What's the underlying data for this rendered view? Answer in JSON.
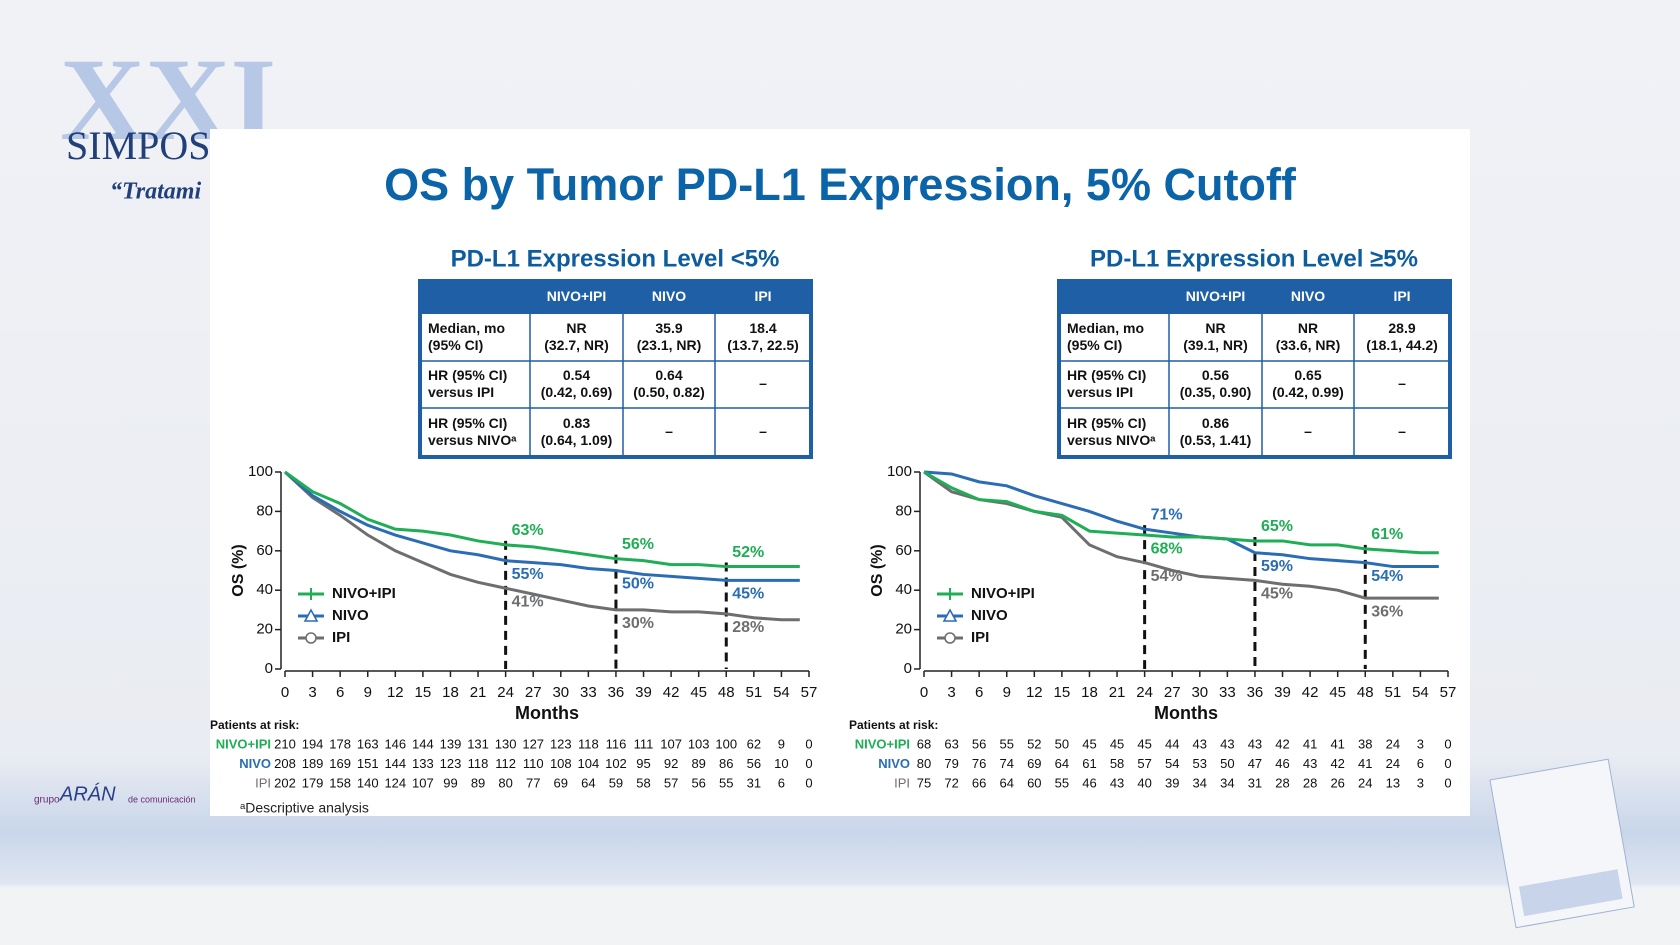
{
  "background": {
    "logo": [
      "XXI",
      "SIMPOSIO",
      "“Tratami"
    ],
    "publisher": [
      "grupo",
      "ARÁN",
      "de comunicación"
    ]
  },
  "title": "OS by Tumor PD-L1 Expression, 5% Cutoff",
  "chart_data": [
    {
      "type": "line",
      "title": "PD-L1 Expression Level <5%",
      "table": {
        "columns": [
          "NIVO+IPI",
          "NIVO",
          "IPI"
        ],
        "rows": [
          {
            "label": [
              "Median, mo",
              "(95% CI)"
            ],
            "cells": [
              [
                "NR",
                "(32.7, NR)"
              ],
              [
                "35.9",
                "(23.1, NR)"
              ],
              [
                "18.4",
                "(13.7, 22.5)"
              ]
            ]
          },
          {
            "label": [
              "HR (95% CI)",
              "versus IPI"
            ],
            "cells": [
              [
                "0.54",
                "(0.42, 0.69)"
              ],
              [
                "0.64",
                "(0.50, 0.82)"
              ],
              [
                "–"
              ]
            ]
          },
          {
            "label": [
              "HR (95% CI)",
              "versus NIVOᵃ"
            ],
            "cells": [
              [
                "0.83",
                "(0.64, 1.09)"
              ],
              [
                "–"
              ],
              [
                "–"
              ]
            ]
          }
        ]
      },
      "x": [
        0,
        3,
        6,
        9,
        12,
        15,
        18,
        21,
        24,
        27,
        30,
        33,
        36,
        39,
        42,
        45,
        48,
        51,
        54,
        56
      ],
      "xlim": [
        0,
        57
      ],
      "xticks": [
        0,
        3,
        6,
        9,
        12,
        15,
        18,
        21,
        24,
        27,
        30,
        33,
        36,
        39,
        42,
        45,
        48,
        51,
        54,
        57
      ],
      "ylim": [
        0,
        100
      ],
      "yticks": [
        0,
        20,
        40,
        60,
        80,
        100
      ],
      "xlabel": "Months",
      "ylabel": "OS (%)",
      "milestones": [
        24,
        36,
        48
      ],
      "series": [
        {
          "name": "NIVO+IPI",
          "color": "#1fae55",
          "marker": "plus",
          "values": [
            100,
            90,
            84,
            76,
            71,
            70,
            68,
            65,
            63,
            62,
            60,
            58,
            56,
            55,
            53,
            53,
            52,
            52,
            52,
            52
          ],
          "milestone_labels": [
            "63%",
            "56%",
            "52%"
          ]
        },
        {
          "name": "NIVO",
          "color": "#2a6db5",
          "marker": "triangle",
          "values": [
            100,
            88,
            80,
            73,
            68,
            64,
            60,
            58,
            55,
            54,
            53,
            51,
            50,
            48,
            47,
            46,
            45,
            45,
            45,
            45
          ],
          "milestone_labels": [
            "55%",
            "50%",
            "45%"
          ]
        },
        {
          "name": "IPI",
          "color": "#6d6e70",
          "marker": "circle",
          "values": [
            100,
            87,
            78,
            68,
            60,
            54,
            48,
            44,
            41,
            38,
            35,
            32,
            30,
            30,
            29,
            29,
            28,
            26,
            25,
            25
          ],
          "milestone_labels": [
            "41%",
            "30%",
            "28%"
          ]
        }
      ],
      "at_risk": {
        "title": "Patients at risk:",
        "rows": [
          [
            210,
            194,
            178,
            163,
            146,
            144,
            139,
            131,
            130,
            127,
            123,
            118,
            116,
            111,
            107,
            103,
            100,
            62,
            9,
            0
          ],
          [
            208,
            189,
            169,
            151,
            144,
            133,
            123,
            118,
            112,
            110,
            108,
            104,
            102,
            95,
            92,
            89,
            86,
            56,
            10,
            0
          ],
          [
            202,
            179,
            158,
            140,
            124,
            107,
            99,
            89,
            80,
            77,
            69,
            64,
            59,
            58,
            57,
            56,
            55,
            31,
            6,
            0
          ]
        ]
      }
    },
    {
      "type": "line",
      "title": "PD-L1 Expression Level ≥5%",
      "table": {
        "columns": [
          "NIVO+IPI",
          "NIVO",
          "IPI"
        ],
        "rows": [
          {
            "label": [
              "Median, mo",
              "(95% CI)"
            ],
            "cells": [
              [
                "NR",
                "(39.1, NR)"
              ],
              [
                "NR",
                "(33.6, NR)"
              ],
              [
                "28.9",
                "(18.1, 44.2)"
              ]
            ]
          },
          {
            "label": [
              "HR (95% CI)",
              "versus IPI"
            ],
            "cells": [
              [
                "0.56",
                "(0.35, 0.90)"
              ],
              [
                "0.65",
                "(0.42, 0.99)"
              ],
              [
                "–"
              ]
            ]
          },
          {
            "label": [
              "HR (95% CI)",
              "versus NIVOᵃ"
            ],
            "cells": [
              [
                "0.86",
                "(0.53, 1.41)"
              ],
              [
                "–"
              ],
              [
                "–"
              ]
            ]
          }
        ]
      },
      "x": [
        0,
        3,
        6,
        9,
        12,
        15,
        18,
        21,
        24,
        27,
        30,
        33,
        36,
        39,
        42,
        45,
        48,
        51,
        54,
        56
      ],
      "xlim": [
        0,
        57
      ],
      "xticks": [
        0,
        3,
        6,
        9,
        12,
        15,
        18,
        21,
        24,
        27,
        30,
        33,
        36,
        39,
        42,
        45,
        48,
        51,
        54,
        57
      ],
      "ylim": [
        0,
        100
      ],
      "yticks": [
        0,
        20,
        40,
        60,
        80,
        100
      ],
      "xlabel": "Months",
      "ylabel": "OS (%)",
      "milestones": [
        24,
        36,
        48
      ],
      "series": [
        {
          "name": "NIVO+IPI",
          "color": "#1fae55",
          "marker": "plus",
          "values": [
            100,
            92,
            86,
            85,
            80,
            78,
            70,
            69,
            68,
            67,
            67,
            66,
            65,
            65,
            63,
            63,
            61,
            60,
            59,
            59
          ],
          "milestone_labels": [
            "68%",
            "65%",
            "61%"
          ]
        },
        {
          "name": "NIVO",
          "color": "#2a6db5",
          "marker": "triangle",
          "values": [
            100,
            99,
            95,
            93,
            88,
            84,
            80,
            75,
            71,
            69,
            67,
            66,
            59,
            58,
            56,
            55,
            54,
            52,
            52,
            52
          ],
          "milestone_labels": [
            "71%",
            "59%",
            "54%"
          ]
        },
        {
          "name": "IPI",
          "color": "#6d6e70",
          "marker": "circle",
          "values": [
            100,
            90,
            86,
            84,
            80,
            77,
            63,
            57,
            54,
            50,
            47,
            46,
            45,
            43,
            42,
            40,
            36,
            36,
            36,
            36
          ],
          "milestone_labels": [
            "54%",
            "45%",
            "36%"
          ]
        }
      ],
      "at_risk": {
        "title": "Patients at risk:",
        "rows": [
          [
            68,
            63,
            56,
            55,
            52,
            50,
            45,
            45,
            45,
            44,
            43,
            43,
            43,
            42,
            41,
            41,
            38,
            24,
            3,
            0
          ],
          [
            80,
            79,
            76,
            74,
            69,
            64,
            61,
            58,
            57,
            54,
            53,
            50,
            47,
            46,
            43,
            42,
            41,
            24,
            6,
            0
          ],
          [
            75,
            72,
            66,
            64,
            60,
            55,
            46,
            43,
            40,
            39,
            34,
            34,
            31,
            28,
            28,
            26,
            24,
            13,
            3,
            0
          ]
        ]
      }
    }
  ],
  "footnote": "ᵃDescriptive analysis"
}
